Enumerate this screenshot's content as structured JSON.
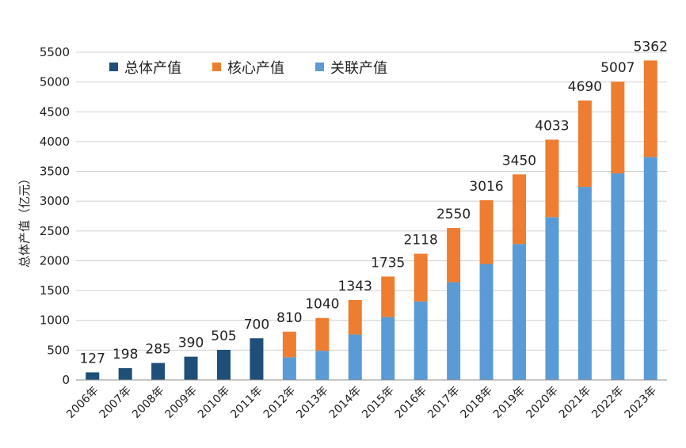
{
  "chart_data": {
    "type": "bar",
    "stacked": true,
    "title": "",
    "xlabel": "",
    "ylabel": "总体产值（亿元）",
    "ylim": [
      0,
      5500
    ],
    "yticks": [
      0,
      500,
      1000,
      1500,
      2000,
      2500,
      3000,
      3500,
      4000,
      4500,
      5000,
      5500
    ],
    "grid": "horizontal",
    "legend_position": "top-left",
    "categories": [
      "2006年",
      "2007年",
      "2008年",
      "2009年",
      "2010年",
      "2011年",
      "2012年",
      "2013年",
      "2014年",
      "2015年",
      "2016年",
      "2017年",
      "2018年",
      "2019年",
      "2020年",
      "2021年",
      "2022年",
      "2023年"
    ],
    "series": [
      {
        "name": "总体产值",
        "color": "#1f4e79",
        "values": [
          127,
          198,
          285,
          390,
          505,
          700,
          null,
          null,
          null,
          null,
          null,
          null,
          null,
          null,
          null,
          null,
          null,
          null
        ]
      },
      {
        "name": "核心产值",
        "color": "#ed7d31",
        "values": [
          null,
          null,
          null,
          null,
          null,
          null,
          430,
          550,
          580,
          680,
          800,
          910,
          1070,
          1170,
          1300,
          1450,
          1540,
          1620
        ]
      },
      {
        "name": "关联产值",
        "color": "#5b9bd5",
        "values": [
          null,
          null,
          null,
          null,
          null,
          null,
          380,
          490,
          763,
          1055,
          1318,
          1640,
          1946,
          2280,
          2733,
          3240,
          3467,
          3742
        ]
      }
    ],
    "total_labels": [
      127,
      198,
      285,
      390,
      505,
      700,
      810,
      1040,
      1343,
      1735,
      2118,
      2550,
      3016,
      3450,
      4033,
      4690,
      5007,
      5362
    ]
  }
}
